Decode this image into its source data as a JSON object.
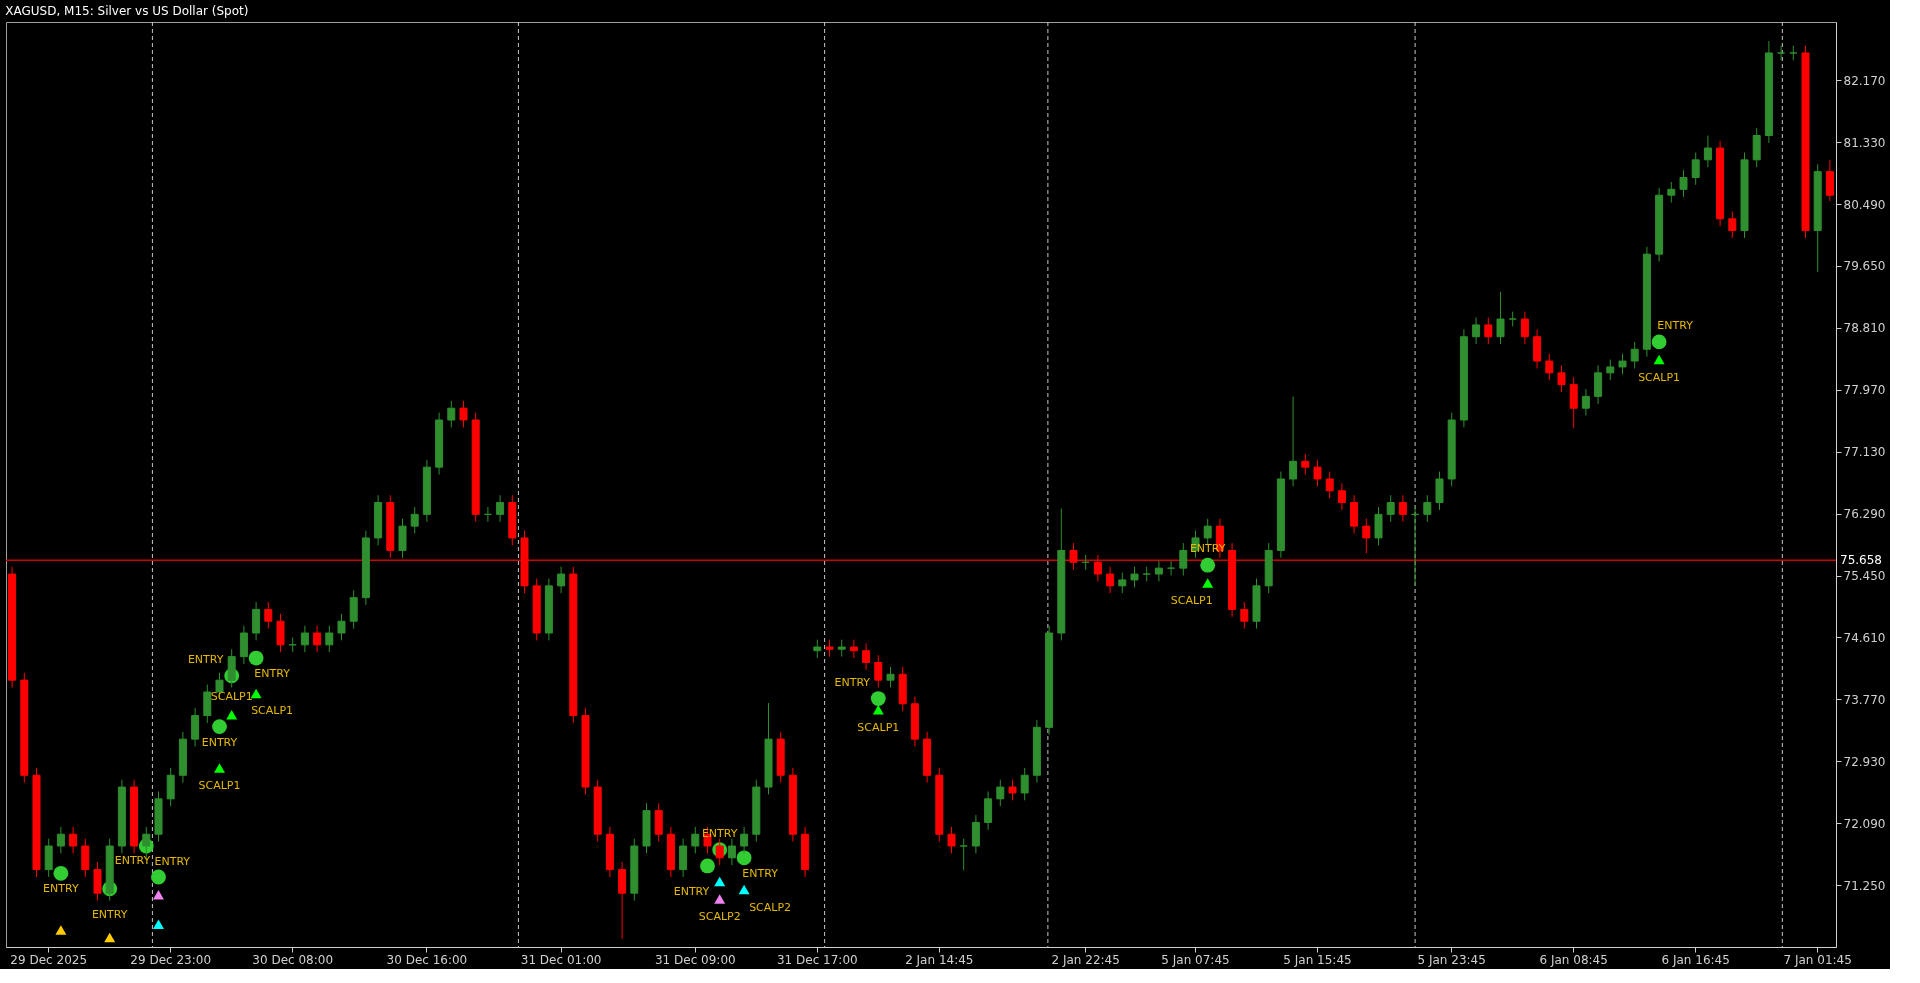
{
  "chart_data": {
    "type": "candlestick",
    "title": "XAGUSD, M15:  Silver vs US Dollar (Spot)",
    "grid": false,
    "categories": [
      null,
      null,
      null,
      "29 Dec 2025",
      null,
      null,
      null,
      null,
      null,
      null,
      null,
      null,
      null,
      "29 Dec 23:00",
      null,
      null,
      null,
      null,
      null,
      null,
      null,
      null,
      null,
      "30 Dec 08:00",
      null,
      null,
      null,
      null,
      null,
      null,
      null,
      null,
      null,
      null,
      "30 Dec 16:00",
      null,
      null,
      null,
      null,
      null,
      null,
      null,
      null,
      null,
      null,
      "31 Dec 01:00",
      null,
      null,
      null,
      null,
      null,
      null,
      null,
      null,
      null,
      null,
      "31 Dec 09:00",
      null,
      null,
      null,
      null,
      null,
      null,
      null,
      null,
      null,
      "31 Dec 17:00",
      null,
      null,
      null,
      null,
      null,
      null,
      null,
      null,
      null,
      "2 Jan 14:45",
      null,
      null,
      null,
      null,
      null,
      null,
      null,
      null,
      null,
      null,
      null,
      "2 Jan 22:45",
      null,
      null,
      null,
      null,
      null,
      null,
      null,
      null,
      "5 Jan 07:45",
      null,
      null,
      null,
      null,
      null,
      null,
      null,
      null,
      null,
      "5 Jan 15:45",
      null,
      null,
      null,
      null,
      null,
      null,
      null,
      null,
      null,
      null,
      "5 Jan 23:45",
      null,
      null,
      null,
      null,
      null,
      null,
      null,
      null,
      null,
      "6 Jan 08:45",
      null,
      null,
      null,
      null,
      null,
      null,
      null,
      null,
      null,
      "6 Jan 16:45",
      null,
      null,
      null,
      null,
      null,
      null,
      null,
      null,
      null,
      "7 Jan 01:45",
      null
    ],
    "ohlc": [
      [
        75.47,
        75.57,
        73.93,
        74.03
      ],
      [
        74.03,
        74.13,
        72.64,
        72.74
      ],
      [
        72.74,
        72.84,
        71.36,
        71.46
      ],
      [
        71.46,
        71.88,
        71.36,
        71.78
      ],
      [
        71.78,
        72.04,
        71.68,
        71.94
      ],
      [
        71.94,
        72.04,
        71.68,
        71.78
      ],
      [
        71.78,
        71.88,
        71.36,
        71.46
      ],
      [
        71.46,
        71.56,
        71.04,
        71.14
      ],
      [
        71.14,
        71.88,
        71.04,
        71.78
      ],
      [
        71.78,
        72.68,
        71.68,
        72.58
      ],
      [
        72.58,
        72.68,
        71.68,
        71.78
      ],
      [
        71.78,
        72.04,
        71.6,
        71.94
      ],
      [
        71.94,
        72.52,
        71.84,
        72.42
      ],
      [
        72.42,
        72.84,
        72.32,
        72.74
      ],
      [
        72.74,
        73.33,
        72.64,
        73.23
      ],
      [
        73.23,
        73.65,
        73.13,
        73.55
      ],
      [
        73.55,
        73.97,
        73.45,
        73.87
      ],
      [
        73.87,
        74.13,
        73.77,
        74.03
      ],
      [
        74.03,
        74.45,
        73.93,
        74.35
      ],
      [
        74.35,
        74.77,
        74.25,
        74.67
      ],
      [
        74.67,
        75.09,
        74.57,
        74.99
      ],
      [
        74.99,
        75.09,
        74.73,
        74.83
      ],
      [
        74.83,
        74.93,
        74.41,
        74.51
      ],
      [
        74.51,
        74.61,
        74.41,
        74.51
      ],
      [
        74.51,
        74.77,
        74.41,
        74.67
      ],
      [
        74.67,
        74.77,
        74.41,
        74.51
      ],
      [
        74.51,
        74.77,
        74.41,
        74.67
      ],
      [
        74.67,
        74.93,
        74.57,
        74.83
      ],
      [
        74.83,
        75.25,
        74.73,
        75.15
      ],
      [
        75.15,
        76.06,
        75.05,
        75.96
      ],
      [
        75.96,
        76.54,
        75.86,
        76.44
      ],
      [
        76.44,
        76.54,
        75.69,
        75.79
      ],
      [
        75.79,
        76.22,
        75.69,
        76.12
      ],
      [
        76.12,
        76.38,
        76.02,
        76.28
      ],
      [
        76.28,
        77.02,
        76.18,
        76.92
      ],
      [
        76.92,
        77.66,
        76.82,
        77.56
      ],
      [
        77.56,
        77.82,
        77.46,
        77.72
      ],
      [
        77.72,
        77.82,
        77.46,
        77.56
      ],
      [
        77.56,
        77.66,
        76.18,
        76.28
      ],
      [
        76.28,
        76.38,
        76.18,
        76.28
      ],
      [
        76.28,
        76.54,
        76.18,
        76.44
      ],
      [
        76.44,
        76.54,
        75.86,
        75.96
      ],
      [
        75.96,
        76.06,
        75.21,
        75.31
      ],
      [
        75.31,
        75.41,
        74.57,
        74.67
      ],
      [
        74.67,
        75.41,
        74.57,
        75.31
      ],
      [
        75.31,
        75.57,
        75.21,
        75.47
      ],
      [
        75.47,
        75.57,
        73.45,
        73.55
      ],
      [
        73.55,
        73.65,
        72.48,
        72.58
      ],
      [
        72.58,
        72.68,
        71.84,
        71.94
      ],
      [
        71.94,
        72.04,
        71.36,
        71.46
      ],
      [
        71.46,
        71.56,
        70.52,
        71.14
      ],
      [
        71.14,
        71.88,
        71.04,
        71.78
      ],
      [
        71.78,
        72.36,
        71.68,
        72.26
      ],
      [
        72.26,
        72.36,
        71.84,
        71.94
      ],
      [
        71.94,
        72.04,
        71.36,
        71.46
      ],
      [
        71.46,
        71.88,
        71.36,
        71.78
      ],
      [
        71.78,
        72.04,
        71.68,
        71.94
      ],
      [
        71.94,
        72.04,
        71.68,
        71.78
      ],
      [
        71.78,
        71.88,
        71.52,
        71.62
      ],
      [
        71.62,
        71.88,
        71.52,
        71.78
      ],
      [
        71.78,
        72.04,
        71.68,
        71.94
      ],
      [
        71.94,
        72.68,
        71.84,
        72.58
      ],
      [
        72.58,
        73.72,
        72.48,
        73.23
      ],
      [
        73.23,
        73.33,
        72.64,
        72.74
      ],
      [
        72.74,
        72.84,
        71.84,
        71.94
      ],
      [
        71.94,
        72.04,
        71.36,
        71.46
      ],
      [
        74.43,
        74.58,
        74.33,
        74.48
      ],
      [
        74.48,
        74.58,
        74.35,
        74.45
      ],
      [
        74.45,
        74.58,
        74.35,
        74.48
      ],
      [
        74.48,
        74.58,
        74.33,
        74.43
      ],
      [
        74.43,
        74.53,
        74.17,
        74.27
      ],
      [
        74.27,
        74.37,
        73.93,
        74.03
      ],
      [
        74.03,
        74.21,
        73.93,
        74.11
      ],
      [
        74.11,
        74.21,
        73.61,
        73.71
      ],
      [
        73.71,
        73.81,
        73.13,
        73.23
      ],
      [
        73.23,
        73.33,
        72.64,
        72.74
      ],
      [
        72.74,
        72.84,
        71.84,
        71.94
      ],
      [
        71.94,
        72.04,
        71.68,
        71.78
      ],
      [
        71.78,
        71.88,
        71.45,
        71.78
      ],
      [
        71.78,
        72.2,
        71.68,
        72.1
      ],
      [
        72.1,
        72.52,
        72.0,
        72.42
      ],
      [
        72.42,
        72.68,
        72.32,
        72.58
      ],
      [
        72.58,
        72.68,
        72.4,
        72.5
      ],
      [
        72.5,
        72.84,
        72.4,
        72.74
      ],
      [
        72.74,
        73.49,
        72.64,
        73.39
      ],
      [
        73.39,
        74.77,
        73.29,
        74.67
      ],
      [
        74.67,
        76.36,
        74.57,
        75.79
      ],
      [
        75.79,
        75.89,
        75.53,
        75.63
      ],
      [
        75.63,
        75.73,
        75.53,
        75.63
      ],
      [
        75.63,
        75.73,
        75.37,
        75.47
      ],
      [
        75.47,
        75.57,
        75.21,
        75.31
      ],
      [
        75.31,
        75.49,
        75.21,
        75.39
      ],
      [
        75.39,
        75.57,
        75.29,
        75.47
      ],
      [
        75.47,
        75.57,
        75.37,
        75.47
      ],
      [
        75.47,
        75.65,
        75.37,
        75.55
      ],
      [
        75.55,
        75.65,
        75.45,
        75.55
      ],
      [
        75.55,
        75.89,
        75.45,
        75.79
      ],
      [
        75.79,
        76.06,
        75.69,
        75.96
      ],
      [
        75.96,
        76.22,
        75.86,
        76.12
      ],
      [
        76.12,
        76.22,
        75.69,
        75.79
      ],
      [
        75.79,
        75.89,
        74.89,
        74.99
      ],
      [
        74.99,
        75.09,
        74.73,
        74.83
      ],
      [
        74.83,
        75.41,
        74.73,
        75.31
      ],
      [
        75.31,
        75.89,
        75.21,
        75.79
      ],
      [
        75.79,
        76.86,
        75.69,
        76.76
      ],
      [
        76.76,
        77.88,
        76.66,
        77.0
      ],
      [
        77.0,
        77.1,
        76.82,
        76.92
      ],
      [
        76.92,
        77.02,
        76.66,
        76.76
      ],
      [
        76.76,
        76.86,
        76.5,
        76.6
      ],
      [
        76.6,
        76.7,
        76.34,
        76.44
      ],
      [
        76.44,
        76.54,
        76.02,
        76.12
      ],
      [
        76.12,
        76.22,
        75.75,
        75.96
      ],
      [
        75.96,
        76.38,
        75.86,
        76.28
      ],
      [
        76.28,
        76.54,
        76.18,
        76.44
      ],
      [
        76.44,
        76.54,
        76.18,
        76.28
      ],
      [
        76.28,
        76.38,
        75.31,
        76.28
      ],
      [
        76.28,
        76.54,
        76.18,
        76.44
      ],
      [
        76.44,
        76.86,
        76.34,
        76.76
      ],
      [
        76.76,
        77.66,
        76.66,
        77.56
      ],
      [
        77.56,
        78.79,
        77.46,
        78.69
      ],
      [
        78.69,
        78.95,
        78.59,
        78.85
      ],
      [
        78.85,
        78.95,
        78.59,
        78.69
      ],
      [
        78.69,
        79.3,
        78.59,
        78.93
      ],
      [
        78.93,
        79.03,
        78.83,
        78.93
      ],
      [
        78.93,
        79.03,
        78.59,
        78.69
      ],
      [
        78.69,
        78.79,
        78.26,
        78.36
      ],
      [
        78.36,
        78.46,
        78.1,
        78.2
      ],
      [
        78.2,
        78.3,
        77.94,
        78.04
      ],
      [
        78.04,
        78.14,
        77.45,
        77.72
      ],
      [
        77.72,
        77.98,
        77.62,
        77.88
      ],
      [
        77.88,
        78.3,
        77.78,
        78.2
      ],
      [
        78.2,
        78.38,
        78.1,
        78.28
      ],
      [
        78.28,
        78.46,
        78.18,
        78.36
      ],
      [
        78.36,
        78.62,
        78.26,
        78.52
      ],
      [
        78.52,
        79.91,
        78.42,
        79.81
      ],
      [
        79.81,
        80.71,
        79.71,
        80.61
      ],
      [
        80.61,
        80.79,
        80.51,
        80.69
      ],
      [
        80.69,
        80.95,
        80.59,
        80.85
      ],
      [
        80.85,
        81.19,
        80.75,
        81.09
      ],
      [
        81.09,
        81.42,
        80.99,
        81.25
      ],
      [
        81.25,
        81.35,
        80.19,
        80.29
      ],
      [
        80.29,
        80.39,
        80.03,
        80.13
      ],
      [
        80.13,
        81.19,
        80.03,
        81.09
      ],
      [
        81.09,
        81.52,
        80.99,
        81.42
      ],
      [
        81.42,
        82.7,
        81.32,
        82.54
      ],
      [
        82.54,
        82.64,
        82.44,
        82.54
      ],
      [
        82.54,
        82.64,
        82.44,
        82.54
      ],
      [
        82.54,
        82.64,
        80.03,
        80.13
      ],
      [
        80.13,
        81.03,
        79.57,
        80.93
      ],
      [
        80.93,
        81.09,
        80.53,
        80.61
      ]
    ],
    "colors": [
      "#ff0000",
      "#ff0000",
      "#ff0000",
      "#2f8f2f",
      "#2f8f2f",
      "#ff0000",
      "#ff0000",
      "#ff0000",
      "#2f8f2f",
      "#2f8f2f",
      "#ff0000",
      "#2f8f2f",
      "#2f8f2f",
      "#2f8f2f",
      "#2f8f2f",
      "#2f8f2f",
      "#2f8f2f",
      "#2f8f2f",
      "#2f8f2f",
      "#2f8f2f",
      "#2f8f2f",
      "#ff0000",
      "#ff0000",
      "#2f8f2f",
      "#2f8f2f",
      "#ff0000",
      "#2f8f2f",
      "#2f8f2f",
      "#2f8f2f",
      "#2f8f2f",
      "#2f8f2f",
      "#ff0000",
      "#2f8f2f",
      "#2f8f2f",
      "#2f8f2f",
      "#2f8f2f",
      "#2f8f2f",
      "#ff0000",
      "#ff0000",
      "#2f8f2f",
      "#2f8f2f",
      "#ff0000",
      "#ff0000",
      "#ff0000",
      "#2f8f2f",
      "#2f8f2f",
      "#ff0000",
      "#ff0000",
      "#ff0000",
      "#ff0000",
      "#ff0000",
      "#2f8f2f",
      "#2f8f2f",
      "#ff0000",
      "#ff0000",
      "#2f8f2f",
      "#2f8f2f",
      "#ff0000",
      "#ff0000",
      "#2f8f2f",
      "#2f8f2f",
      "#2f8f2f",
      "#2f8f2f",
      "#ff0000",
      "#ff0000",
      "#ff0000",
      "#2f8f2f",
      "#ff0000",
      "#2f8f2f",
      "#ff0000",
      "#ff0000",
      "#ff0000",
      "#2f8f2f",
      "#ff0000",
      "#ff0000",
      "#ff0000",
      "#ff0000",
      "#ff0000",
      "#2f8f2f",
      "#2f8f2f",
      "#2f8f2f",
      "#2f8f2f",
      "#ff0000",
      "#2f8f2f",
      "#2f8f2f",
      "#2f8f2f",
      "#2f8f2f",
      "#ff0000",
      "#2f8f2f",
      "#ff0000",
      "#ff0000",
      "#2f8f2f",
      "#2f8f2f",
      "#2f8f2f",
      "#2f8f2f",
      "#2f8f2f",
      "#2f8f2f",
      "#2f8f2f",
      "#2f8f2f",
      "#ff0000",
      "#ff0000",
      "#ff0000",
      "#2f8f2f",
      "#2f8f2f",
      "#2f8f2f",
      "#2f8f2f",
      "#ff0000",
      "#ff0000",
      "#ff0000",
      "#ff0000",
      "#ff0000",
      "#ff0000",
      "#2f8f2f",
      "#2f8f2f",
      "#ff0000",
      "#2f8f2f",
      "#2f8f2f",
      "#2f8f2f",
      "#2f8f2f",
      "#2f8f2f",
      "#2f8f2f",
      "#ff0000",
      "#2f8f2f",
      "#2f8f2f",
      "#ff0000",
      "#ff0000",
      "#ff0000",
      "#ff0000",
      "#ff0000",
      "#2f8f2f",
      "#2f8f2f",
      "#2f8f2f",
      "#2f8f2f",
      "#2f8f2f",
      "#2f8f2f",
      "#2f8f2f",
      "#2f8f2f",
      "#2f8f2f",
      "#2f8f2f",
      "#2f8f2f",
      "#ff0000",
      "#ff0000",
      "#2f8f2f",
      "#2f8f2f",
      "#2f8f2f",
      "#2f8f2f",
      "#2f8f2f",
      "#ff0000",
      "#2f8f2f",
      "#ff0000"
    ],
    "ylim": [
      70.41,
      82.96
    ],
    "yticks": [
      {
        "value": 71.25,
        "label": "71.250"
      },
      {
        "value": 72.09,
        "label": "72.090"
      },
      {
        "value": 72.93,
        "label": "72.930"
      },
      {
        "value": 73.77,
        "label": "73.770"
      },
      {
        "value": 74.61,
        "label": "74.610"
      },
      {
        "value": 75.45,
        "label": "75.450"
      },
      {
        "value": 76.29,
        "label": "76.290"
      },
      {
        "value": 77.13,
        "label": "77.130"
      },
      {
        "value": 77.97,
        "label": "77.970"
      },
      {
        "value": 78.81,
        "label": "78.810"
      },
      {
        "value": 79.65,
        "label": "79.650"
      },
      {
        "value": 80.49,
        "label": "80.490"
      },
      {
        "value": 81.33,
        "label": "81.330"
      },
      {
        "value": 82.17,
        "label": "82.170"
      }
    ],
    "ref_lines": [
      {
        "axis": "y",
        "value": 75.658,
        "label": "75.658",
        "color": "#d00000",
        "line_style": "solid"
      }
    ],
    "series": [
      {
        "type": "scatter",
        "marker": "circle",
        "color": "#32cd32",
        "values": [
          null,
          null,
          null,
          null,
          71.41,
          null,
          null,
          null,
          71.2,
          null,
          null,
          71.78,
          71.36,
          null,
          null,
          null,
          null,
          73.4,
          74.09,
          null,
          74.33,
          null,
          null,
          null,
          null,
          null,
          null,
          null,
          null,
          null,
          null,
          null,
          null,
          null,
          null,
          null,
          null,
          null,
          null,
          null,
          null,
          null,
          null,
          null,
          null,
          null,
          null,
          null,
          null,
          null,
          null,
          null,
          null,
          null,
          null,
          null,
          null,
          71.51,
          71.73,
          null,
          71.62,
          null,
          null,
          null,
          null,
          null,
          null,
          null,
          null,
          null,
          null,
          73.78,
          null,
          null,
          null,
          null,
          null,
          null,
          null,
          null,
          null,
          null,
          null,
          null,
          null,
          null,
          null,
          null,
          null,
          null,
          null,
          null,
          null,
          null,
          null,
          null,
          null,
          null,
          75.59,
          null,
          null,
          null,
          null,
          null,
          null,
          null,
          null,
          null,
          null,
          null,
          null,
          null,
          null,
          null,
          null,
          null,
          null,
          null,
          null,
          null,
          null,
          null,
          null,
          null,
          null,
          null,
          null,
          null,
          null,
          null,
          null,
          null,
          null,
          null,
          null,
          78.62,
          null,
          null,
          null,
          null,
          null,
          null,
          null,
          null,
          null,
          null,
          null,
          null,
          null,
          null
        ],
        "value_labels": [
          null,
          null,
          null,
          null,
          "ENTRY",
          null,
          null,
          null,
          "ENTRY",
          null,
          null,
          "ENTRY",
          "ENTRY",
          null,
          null,
          null,
          null,
          "ENTRY",
          "ENTRY",
          null,
          "ENTRY",
          null,
          null,
          null,
          null,
          null,
          null,
          null,
          null,
          null,
          null,
          null,
          null,
          null,
          null,
          null,
          null,
          null,
          null,
          null,
          null,
          null,
          null,
          null,
          null,
          null,
          null,
          null,
          null,
          null,
          null,
          null,
          null,
          null,
          null,
          null,
          null,
          "ENTRY",
          "ENTRY",
          null,
          "ENTRY",
          null,
          null,
          null,
          null,
          null,
          null,
          null,
          null,
          null,
          null,
          "ENTRY",
          null,
          null,
          null,
          null,
          null,
          null,
          null,
          null,
          null,
          null,
          null,
          null,
          null,
          null,
          null,
          null,
          null,
          null,
          null,
          null,
          null,
          null,
          null,
          null,
          null,
          null,
          "ENTRY",
          null,
          null,
          null,
          null,
          null,
          null,
          null,
          null,
          null,
          null,
          null,
          null,
          null,
          null,
          null,
          null,
          null,
          null,
          null,
          null,
          null,
          null,
          null,
          null,
          null,
          null,
          null,
          null,
          null,
          null,
          null,
          null,
          null,
          null,
          null,
          null,
          "ENTRY",
          null,
          null,
          null,
          null,
          null,
          null,
          null,
          null,
          null,
          null,
          null,
          null,
          null,
          null
        ]
      },
      {
        "type": "scatter",
        "marker": "triangle",
        "color": "#ffcc00",
        "values": [
          null,
          null,
          null,
          null,
          70.64,
          null,
          null,
          null,
          70.54,
          null,
          null,
          null,
          null,
          null,
          null,
          null,
          null,
          null,
          null,
          null,
          null,
          null,
          null,
          null,
          null,
          null,
          null,
          null,
          null,
          null,
          null,
          null,
          null,
          null,
          null,
          null,
          null,
          null,
          null,
          null,
          null,
          null,
          null,
          null,
          null,
          null,
          null,
          null,
          null,
          null,
          null,
          null,
          null,
          null,
          null,
          null,
          null,
          null,
          null,
          null,
          null,
          null,
          null,
          null,
          null,
          null,
          null,
          null,
          null,
          null,
          null,
          null,
          null,
          null,
          null,
          null,
          null,
          null,
          null,
          null,
          null,
          null,
          null,
          null,
          null,
          null,
          null,
          null,
          null,
          null,
          null,
          null,
          null,
          null,
          null,
          null,
          null,
          null,
          null,
          null,
          null,
          null,
          null,
          null,
          null,
          null,
          null,
          null,
          null,
          null,
          null,
          null,
          null,
          null,
          null,
          null,
          null,
          null,
          null,
          null,
          null,
          null,
          null,
          null,
          null,
          null,
          null,
          null,
          null,
          null,
          null,
          null,
          null,
          null,
          null,
          null,
          null,
          null,
          null,
          null,
          null,
          null,
          null,
          null,
          null,
          null,
          null,
          null,
          null,
          null
        ]
      },
      {
        "type": "scatter",
        "marker": "triangle",
        "color": "#ee82ee",
        "values": [
          null,
          null,
          null,
          null,
          null,
          null,
          null,
          null,
          null,
          null,
          null,
          null,
          71.12,
          null,
          null,
          null,
          null,
          null,
          null,
          null,
          null,
          null,
          null,
          null,
          null,
          null,
          null,
          null,
          null,
          null,
          null,
          null,
          null,
          null,
          null,
          null,
          null,
          null,
          null,
          null,
          null,
          null,
          null,
          null,
          null,
          null,
          null,
          null,
          null,
          null,
          null,
          null,
          null,
          null,
          null,
          null,
          null,
          null,
          71.06,
          null,
          null,
          null,
          null,
          null,
          null,
          null,
          null,
          null,
          null,
          null,
          null,
          null,
          null,
          null,
          null,
          null,
          null,
          null,
          null,
          null,
          null,
          null,
          null,
          null,
          null,
          null,
          null,
          null,
          null,
          null,
          null,
          null,
          null,
          null,
          null,
          null,
          null,
          null,
          null,
          null,
          null,
          null,
          null,
          null,
          null,
          null,
          null,
          null,
          null,
          null,
          null,
          null,
          null,
          null,
          null,
          null,
          null,
          null,
          null,
          null,
          null,
          null,
          null,
          null,
          null,
          null,
          null,
          null,
          null,
          null,
          null,
          null,
          null,
          null,
          null,
          null,
          null,
          null,
          null,
          null,
          null,
          null,
          null,
          null,
          null,
          null,
          null,
          null,
          null,
          null
        ],
        "value_labels": [
          null,
          null,
          null,
          null,
          null,
          null,
          null,
          null,
          null,
          null,
          null,
          null,
          null,
          null,
          null,
          null,
          null,
          null,
          null,
          null,
          null,
          null,
          null,
          null,
          null,
          null,
          null,
          null,
          null,
          null,
          null,
          null,
          null,
          null,
          null,
          null,
          null,
          null,
          null,
          null,
          null,
          null,
          null,
          null,
          null,
          null,
          null,
          null,
          null,
          null,
          null,
          null,
          null,
          null,
          null,
          null,
          null,
          null,
          "SCALP2",
          null,
          null,
          null,
          null,
          null,
          null,
          null,
          null,
          null,
          null,
          null,
          null,
          null,
          null,
          null,
          null,
          null,
          null,
          null,
          null,
          null,
          null,
          null,
          null,
          null,
          null,
          null,
          null,
          null,
          null,
          null,
          null,
          null,
          null,
          null,
          null,
          null,
          null,
          null,
          null,
          null,
          null,
          null,
          null,
          null,
          null,
          null,
          null,
          null,
          null,
          null,
          null,
          null,
          null,
          null,
          null,
          null,
          null,
          null,
          null,
          null,
          null,
          null,
          null,
          null,
          null,
          null,
          null,
          null,
          null,
          null,
          null,
          null,
          null,
          null,
          null,
          null,
          null,
          null,
          null,
          null,
          null,
          null,
          null,
          null,
          null,
          null,
          null,
          null,
          null,
          null
        ]
      },
      {
        "type": "scatter",
        "marker": "triangle",
        "color": "#00ffff",
        "values": [
          null,
          null,
          null,
          null,
          null,
          null,
          null,
          null,
          null,
          null,
          null,
          null,
          70.72,
          null,
          null,
          null,
          null,
          null,
          null,
          null,
          null,
          null,
          null,
          null,
          null,
          null,
          null,
          null,
          null,
          null,
          null,
          null,
          null,
          null,
          null,
          null,
          null,
          null,
          null,
          null,
          null,
          null,
          null,
          null,
          null,
          null,
          null,
          null,
          null,
          null,
          null,
          null,
          null,
          null,
          null,
          null,
          null,
          null,
          71.3,
          null,
          71.19,
          null,
          null,
          null,
          null,
          null,
          null,
          null,
          null,
          null,
          null,
          null,
          null,
          null,
          null,
          null,
          null,
          null,
          null,
          null,
          null,
          null,
          null,
          null,
          null,
          null,
          null,
          null,
          null,
          null,
          null,
          null,
          null,
          null,
          null,
          null,
          null,
          null,
          null,
          null,
          null,
          null,
          null,
          null,
          null,
          null,
          null,
          null,
          null,
          null,
          null,
          null,
          null,
          null,
          null,
          null,
          null,
          null,
          null,
          null,
          null,
          null,
          null,
          null,
          null,
          null,
          null,
          null,
          null,
          null,
          null,
          null,
          null,
          null,
          null,
          null,
          null,
          null,
          null,
          null,
          null,
          null,
          null,
          null,
          null,
          null,
          null,
          null,
          null,
          null
        ],
        "value_labels": [
          null,
          null,
          null,
          null,
          null,
          null,
          null,
          null,
          null,
          null,
          null,
          null,
          null,
          null,
          null,
          null,
          null,
          null,
          null,
          null,
          null,
          null,
          null,
          null,
          null,
          null,
          null,
          null,
          null,
          null,
          null,
          null,
          null,
          null,
          null,
          null,
          null,
          null,
          null,
          null,
          null,
          null,
          null,
          null,
          null,
          null,
          null,
          null,
          null,
          null,
          null,
          null,
          null,
          null,
          null,
          null,
          null,
          null,
          null,
          null,
          "SCALP2",
          null,
          null,
          null,
          null,
          null,
          null,
          null,
          null,
          null,
          null,
          null,
          null,
          null,
          null,
          null,
          null,
          null,
          null,
          null,
          null,
          null,
          null,
          null,
          null,
          null,
          null,
          null,
          null,
          null,
          null,
          null,
          null,
          null,
          null,
          null,
          null,
          null,
          null,
          null,
          null,
          null,
          null,
          null,
          null,
          null,
          null,
          null,
          null,
          null,
          null,
          null,
          null,
          null,
          null,
          null,
          null,
          null,
          null,
          null,
          null,
          null,
          null,
          null,
          null,
          null,
          null,
          null,
          null,
          null,
          null,
          null,
          null,
          null,
          null,
          null,
          null,
          null,
          null,
          null,
          null,
          null,
          null,
          null,
          null,
          null,
          null,
          null,
          null,
          null
        ]
      },
      {
        "type": "scatter",
        "marker": "triangle",
        "color": "#00ff00",
        "values": [
          null,
          null,
          null,
          null,
          null,
          null,
          null,
          null,
          null,
          null,
          null,
          null,
          null,
          null,
          null,
          null,
          null,
          72.84,
          73.56,
          null,
          73.85,
          null,
          null,
          null,
          null,
          null,
          null,
          null,
          null,
          null,
          null,
          null,
          null,
          null,
          null,
          null,
          null,
          null,
          null,
          null,
          null,
          null,
          null,
          null,
          null,
          null,
          null,
          null,
          null,
          null,
          null,
          null,
          null,
          null,
          null,
          null,
          null,
          null,
          null,
          null,
          null,
          null,
          null,
          null,
          null,
          null,
          null,
          null,
          null,
          null,
          null,
          73.63,
          null,
          null,
          null,
          null,
          null,
          null,
          null,
          null,
          null,
          null,
          null,
          null,
          null,
          null,
          null,
          null,
          null,
          null,
          null,
          null,
          null,
          null,
          null,
          null,
          null,
          null,
          75.35,
          null,
          null,
          null,
          null,
          null,
          null,
          null,
          null,
          null,
          null,
          null,
          null,
          null,
          null,
          null,
          null,
          null,
          null,
          null,
          null,
          null,
          null,
          null,
          null,
          null,
          null,
          null,
          null,
          null,
          null,
          null,
          null,
          null,
          null,
          null,
          null,
          78.38,
          null,
          null,
          null,
          null,
          null,
          null,
          null,
          null,
          null,
          null,
          null,
          null,
          null,
          null
        ],
        "value_labels": [
          null,
          null,
          null,
          null,
          null,
          null,
          null,
          null,
          null,
          null,
          null,
          null,
          null,
          null,
          null,
          null,
          null,
          "SCALP1",
          "SCALP1",
          null,
          "SCALP1",
          null,
          null,
          null,
          null,
          null,
          null,
          null,
          null,
          null,
          null,
          null,
          null,
          null,
          null,
          null,
          null,
          null,
          null,
          null,
          null,
          null,
          null,
          null,
          null,
          null,
          null,
          null,
          null,
          null,
          null,
          null,
          null,
          null,
          null,
          null,
          null,
          null,
          null,
          null,
          null,
          null,
          null,
          null,
          null,
          null,
          null,
          null,
          null,
          null,
          null,
          "SCALP1",
          null,
          null,
          null,
          null,
          null,
          null,
          null,
          null,
          null,
          null,
          null,
          null,
          null,
          null,
          null,
          null,
          null,
          null,
          null,
          null,
          null,
          null,
          null,
          null,
          null,
          null,
          "SCALP1",
          null,
          null,
          null,
          null,
          null,
          null,
          null,
          null,
          null,
          null,
          null,
          null,
          null,
          null,
          null,
          null,
          null,
          null,
          null,
          null,
          null,
          null,
          null,
          null,
          null,
          null,
          null,
          null,
          null,
          null,
          null,
          null,
          null,
          null,
          null,
          null,
          "SCALP1",
          null,
          null,
          null,
          null,
          null,
          null,
          null,
          null,
          null,
          null,
          null,
          null,
          null,
          null
        ]
      }
    ]
  }
}
